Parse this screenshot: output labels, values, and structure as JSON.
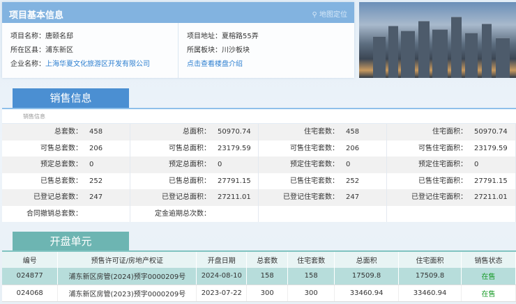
{
  "project": {
    "title": "项目基本信息",
    "map_link": "地图定位",
    "left": [
      {
        "label": "项目名称：",
        "value": "唐颐名邸"
      },
      {
        "label": "所在区县：",
        "value": "浦东新区"
      },
      {
        "label": "企业名称：",
        "value": "上海华夏文化旅游区开发有限公司"
      }
    ],
    "right": [
      {
        "label": "项目地址：",
        "value": "夏榕路55弄"
      },
      {
        "label": "所属板块：",
        "value": "川沙板块"
      }
    ],
    "intro_link": "点击查看楼盘介绍"
  },
  "sales": {
    "tab": "销售信息",
    "subtitle": "销售信息",
    "rows": [
      [
        [
          "总套数：",
          "458"
        ],
        [
          "总面积：",
          "50970.74"
        ],
        [
          "住宅套数：",
          "458"
        ],
        [
          "住宅面积：",
          "50970.74"
        ]
      ],
      [
        [
          "可售总套数：",
          "206"
        ],
        [
          "可售总面积：",
          "23179.59"
        ],
        [
          "可售住宅套数：",
          "206"
        ],
        [
          "可售住宅面积：",
          "23179.59"
        ]
      ],
      [
        [
          "预定总套数：",
          "0"
        ],
        [
          "预定总面积：",
          "0"
        ],
        [
          "预定住宅套数：",
          "0"
        ],
        [
          "预定住宅面积：",
          "0"
        ]
      ],
      [
        [
          "已售总套数：",
          "252"
        ],
        [
          "已售总面积：",
          "27791.15"
        ],
        [
          "已售住宅套数：",
          "252"
        ],
        [
          "已售住宅面积：",
          "27791.15"
        ]
      ],
      [
        [
          "已登记总套数：",
          "247"
        ],
        [
          "已登记总面积：",
          "27211.01"
        ],
        [
          "已登记住宅套数：",
          "247"
        ],
        [
          "已登记住宅面积：",
          "27211.01"
        ]
      ],
      [
        [
          "合同撤销总套数：",
          ""
        ],
        [
          "定金逾期总次数：",
          ""
        ],
        [
          "",
          ""
        ],
        [
          "",
          ""
        ]
      ]
    ]
  },
  "units": {
    "tab": "开盘单元",
    "headers": [
      "编号",
      "预售许可证/房地产权证",
      "开盘日期",
      "总套数",
      "住宅套数",
      "总面积",
      "住宅面积",
      "销售状态"
    ],
    "rows": [
      [
        "024877",
        "浦东新区房管(2024)预字0000209号",
        "2024-08-10",
        "158",
        "158",
        "17509.8",
        "17509.8",
        "在售"
      ],
      [
        "024068",
        "浦东新区房管(2023)预字0000209号",
        "2023-07-22",
        "300",
        "300",
        "33460.94",
        "33460.94",
        "在售"
      ]
    ]
  },
  "colors": {
    "header_blue": "#82b3e0",
    "sales_tab": "#4b8fd2",
    "units_tab": "#6db5b2",
    "status_green": "#1a9b2a"
  }
}
